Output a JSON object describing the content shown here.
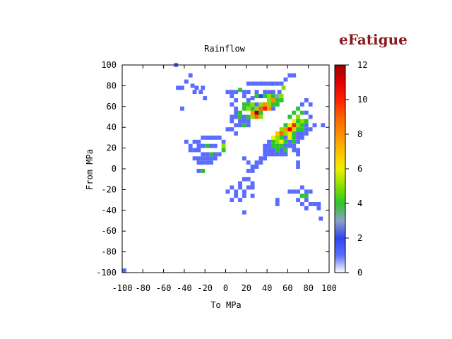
{
  "brand": {
    "logo_text": "eFatigue",
    "color": "#8b1a1a"
  },
  "chart_data": {
    "type": "heatmap",
    "title": "Rainflow",
    "xlabel": "To MPa",
    "ylabel": "From MPa",
    "xlim": [
      -100,
      100
    ],
    "ylim": [
      -100,
      100
    ],
    "bin_size": 4,
    "xticks": [
      -100,
      -80,
      -60,
      -40,
      -20,
      0,
      20,
      40,
      60,
      80,
      100
    ],
    "yticks": [
      -100,
      -80,
      -60,
      -40,
      -20,
      0,
      20,
      40,
      60,
      80,
      100
    ],
    "colorbar": {
      "min": 0,
      "max": 12,
      "ticks": [
        0,
        2,
        4,
        6,
        8,
        10,
        12
      ]
    },
    "colors": {
      "0": "#ffffff",
      "1": "#5a6cff",
      "2": "#2e46f0",
      "3": "#8fa0c8",
      "4": "#2cc42c",
      "5": "#88e000",
      "6": "#f0f000",
      "7": "#ffc000",
      "8": "#ff9000",
      "9": "#ff6000",
      "10": "#ff2000",
      "11": "#e00000",
      "12": "#a00000"
    },
    "cells": [
      [
        -100,
        -100,
        1
      ],
      [
        -50,
        98,
        1
      ],
      [
        -36,
        88,
        1
      ],
      [
        -40,
        82,
        1
      ],
      [
        -44,
        76,
        1
      ],
      [
        -34,
        78,
        1
      ],
      [
        -32,
        72,
        1
      ],
      [
        -30,
        76,
        1
      ],
      [
        -24,
        76,
        1
      ],
      [
        -48,
        76,
        1
      ],
      [
        -22,
        66,
        1
      ],
      [
        -26,
        72,
        1
      ],
      [
        -44,
        56,
        1
      ],
      [
        20,
        80,
        1
      ],
      [
        24,
        80,
        1
      ],
      [
        28,
        80,
        1
      ],
      [
        32,
        80,
        1
      ],
      [
        36,
        80,
        1
      ],
      [
        40,
        80,
        1
      ],
      [
        44,
        80,
        1
      ],
      [
        48,
        80,
        1
      ],
      [
        52,
        80,
        1
      ],
      [
        56,
        84,
        1
      ],
      [
        60,
        88,
        1
      ],
      [
        64,
        88,
        1
      ],
      [
        0,
        72,
        1
      ],
      [
        4,
        72,
        1
      ],
      [
        8,
        72,
        1
      ],
      [
        16,
        72,
        1
      ],
      [
        12,
        74,
        4
      ],
      [
        20,
        72,
        1
      ],
      [
        28,
        72,
        1
      ],
      [
        36,
        72,
        1
      ],
      [
        40,
        72,
        1
      ],
      [
        44,
        72,
        1
      ],
      [
        50,
        72,
        1
      ],
      [
        54,
        76,
        5
      ],
      [
        4,
        68,
        1
      ],
      [
        8,
        64,
        1
      ],
      [
        16,
        68,
        1
      ],
      [
        20,
        64,
        1
      ],
      [
        24,
        66,
        1
      ],
      [
        28,
        68,
        4
      ],
      [
        32,
        68,
        2
      ],
      [
        36,
        68,
        4
      ],
      [
        40,
        68,
        5
      ],
      [
        44,
        68,
        4
      ],
      [
        48,
        68,
        3
      ],
      [
        52,
        68,
        5
      ],
      [
        4,
        60,
        1
      ],
      [
        8,
        56,
        1
      ],
      [
        16,
        60,
        4
      ],
      [
        20,
        60,
        4
      ],
      [
        24,
        60,
        5
      ],
      [
        28,
        60,
        1
      ],
      [
        32,
        60,
        5
      ],
      [
        36,
        60,
        2
      ],
      [
        40,
        64,
        5
      ],
      [
        44,
        64,
        8
      ],
      [
        48,
        64,
        4
      ],
      [
        52,
        64,
        4
      ],
      [
        8,
        52,
        1
      ],
      [
        12,
        52,
        4
      ],
      [
        16,
        56,
        4
      ],
      [
        20,
        56,
        5
      ],
      [
        24,
        56,
        4
      ],
      [
        28,
        56,
        5
      ],
      [
        32,
        56,
        9
      ],
      [
        36,
        60,
        8
      ],
      [
        40,
        60,
        5
      ],
      [
        44,
        60,
        4
      ],
      [
        48,
        60,
        4
      ],
      [
        12,
        48,
        4
      ],
      [
        16,
        48,
        1
      ],
      [
        20,
        48,
        4
      ],
      [
        24,
        52,
        8
      ],
      [
        28,
        52,
        12
      ],
      [
        32,
        52,
        4
      ],
      [
        36,
        56,
        10
      ],
      [
        40,
        56,
        8
      ],
      [
        44,
        56,
        1
      ],
      [
        12,
        44,
        1
      ],
      [
        16,
        44,
        1
      ],
      [
        20,
        44,
        1
      ],
      [
        24,
        48,
        5
      ],
      [
        28,
        48,
        9
      ],
      [
        32,
        48,
        5
      ],
      [
        4,
        44,
        1
      ],
      [
        8,
        40,
        1
      ],
      [
        12,
        40,
        1
      ],
      [
        16,
        40,
        4
      ],
      [
        20,
        40,
        1
      ],
      [
        4,
        48,
        1
      ],
      [
        8,
        48,
        1
      ],
      [
        0,
        36,
        1
      ],
      [
        4,
        36,
        1
      ],
      [
        8,
        32,
        1
      ],
      [
        76,
        64,
        1
      ],
      [
        80,
        60,
        1
      ],
      [
        72,
        60,
        1
      ],
      [
        68,
        56,
        4
      ],
      [
        72,
        52,
        4
      ],
      [
        76,
        52,
        1
      ],
      [
        80,
        48,
        1
      ],
      [
        64,
        52,
        4
      ],
      [
        68,
        48,
        5
      ],
      [
        72,
        44,
        5
      ],
      [
        76,
        44,
        4
      ],
      [
        60,
        48,
        4
      ],
      [
        64,
        44,
        6
      ],
      [
        68,
        44,
        4
      ],
      [
        72,
        40,
        4
      ],
      [
        76,
        40,
        1
      ],
      [
        80,
        36,
        1
      ],
      [
        84,
        40,
        1
      ],
      [
        92,
        40,
        1
      ],
      [
        56,
        40,
        4
      ],
      [
        60,
        40,
        6
      ],
      [
        64,
        40,
        10
      ],
      [
        68,
        40,
        5
      ],
      [
        72,
        36,
        4
      ],
      [
        76,
        36,
        1
      ],
      [
        52,
        36,
        5
      ],
      [
        56,
        36,
        8
      ],
      [
        60,
        36,
        11
      ],
      [
        64,
        36,
        7
      ],
      [
        68,
        36,
        4
      ],
      [
        72,
        32,
        1
      ],
      [
        48,
        32,
        7
      ],
      [
        52,
        32,
        9
      ],
      [
        56,
        32,
        5
      ],
      [
        60,
        32,
        6
      ],
      [
        64,
        32,
        4
      ],
      [
        68,
        32,
        1
      ],
      [
        76,
        32,
        1
      ],
      [
        44,
        28,
        6
      ],
      [
        48,
        28,
        5
      ],
      [
        52,
        28,
        4
      ],
      [
        56,
        28,
        1
      ],
      [
        60,
        28,
        6
      ],
      [
        64,
        28,
        4
      ],
      [
        68,
        28,
        1
      ],
      [
        72,
        28,
        1
      ],
      [
        40,
        24,
        1
      ],
      [
        44,
        24,
        4
      ],
      [
        48,
        24,
        5
      ],
      [
        52,
        24,
        6
      ],
      [
        56,
        24,
        4
      ],
      [
        60,
        24,
        1
      ],
      [
        64,
        24,
        4
      ],
      [
        68,
        24,
        1
      ],
      [
        36,
        20,
        1
      ],
      [
        40,
        20,
        1
      ],
      [
        44,
        20,
        4
      ],
      [
        48,
        20,
        4
      ],
      [
        52,
        20,
        4
      ],
      [
        56,
        20,
        1
      ],
      [
        60,
        20,
        1
      ],
      [
        64,
        20,
        1
      ],
      [
        36,
        16,
        1
      ],
      [
        40,
        16,
        1
      ],
      [
        44,
        16,
        1
      ],
      [
        48,
        16,
        4
      ],
      [
        52,
        16,
        1
      ],
      [
        56,
        16,
        4
      ],
      [
        64,
        16,
        1
      ],
      [
        68,
        16,
        1
      ],
      [
        36,
        12,
        1
      ],
      [
        40,
        12,
        1
      ],
      [
        44,
        12,
        1
      ],
      [
        48,
        12,
        1
      ],
      [
        52,
        12,
        1
      ],
      [
        56,
        12,
        1
      ],
      [
        68,
        12,
        1
      ],
      [
        32,
        8,
        1
      ],
      [
        36,
        8,
        1
      ],
      [
        28,
        4,
        1
      ],
      [
        32,
        4,
        1
      ],
      [
        24,
        0,
        1
      ],
      [
        28,
        0,
        1
      ],
      [
        20,
        -4,
        1
      ],
      [
        24,
        -4,
        1
      ],
      [
        20,
        4,
        1
      ],
      [
        16,
        8,
        1
      ],
      [
        68,
        4,
        1
      ],
      [
        68,
        0,
        1
      ],
      [
        -40,
        24,
        1
      ],
      [
        -36,
        20,
        1
      ],
      [
        -32,
        24,
        1
      ],
      [
        -28,
        24,
        1
      ],
      [
        -24,
        28,
        1
      ],
      [
        -20,
        28,
        1
      ],
      [
        -16,
        28,
        1
      ],
      [
        -12,
        28,
        1
      ],
      [
        -8,
        28,
        1
      ],
      [
        -36,
        16,
        1
      ],
      [
        -32,
        16,
        1
      ],
      [
        -28,
        20,
        1
      ],
      [
        -24,
        20,
        1
      ],
      [
        -20,
        20,
        4
      ],
      [
        -16,
        20,
        1
      ],
      [
        -12,
        20,
        1
      ],
      [
        -4,
        24,
        1
      ],
      [
        -4,
        20,
        5
      ],
      [
        -4,
        16,
        4
      ],
      [
        -28,
        16,
        1
      ],
      [
        -24,
        12,
        1
      ],
      [
        -20,
        12,
        1
      ],
      [
        -16,
        12,
        4
      ],
      [
        -12,
        12,
        1
      ],
      [
        -8,
        12,
        1
      ],
      [
        -32,
        8,
        1
      ],
      [
        -28,
        8,
        1
      ],
      [
        -24,
        8,
        1
      ],
      [
        -20,
        8,
        1
      ],
      [
        -16,
        8,
        1
      ],
      [
        -12,
        8,
        1
      ],
      [
        -28,
        4,
        1
      ],
      [
        -24,
        4,
        1
      ],
      [
        -20,
        4,
        1
      ],
      [
        -16,
        4,
        1
      ],
      [
        -24,
        -4,
        4
      ],
      [
        -28,
        -4,
        1
      ],
      [
        0,
        -24,
        1
      ],
      [
        4,
        -20,
        1
      ],
      [
        8,
        -24,
        1
      ],
      [
        12,
        -20,
        1
      ],
      [
        16,
        -24,
        1
      ],
      [
        20,
        -20,
        1
      ],
      [
        24,
        -20,
        1
      ],
      [
        24,
        -16,
        1
      ],
      [
        20,
        -12,
        1
      ],
      [
        12,
        -16,
        1
      ],
      [
        16,
        -12,
        1
      ],
      [
        4,
        -32,
        1
      ],
      [
        8,
        -28,
        1
      ],
      [
        16,
        -28,
        1
      ],
      [
        12,
        -32,
        1
      ],
      [
        24,
        -28,
        1
      ],
      [
        16,
        -44,
        1
      ],
      [
        60,
        -24,
        1
      ],
      [
        64,
        -24,
        1
      ],
      [
        68,
        -24,
        1
      ],
      [
        72,
        -20,
        1
      ],
      [
        76,
        -24,
        1
      ],
      [
        80,
        -24,
        1
      ],
      [
        72,
        -28,
        4
      ],
      [
        76,
        -28,
        4
      ],
      [
        76,
        -32,
        1
      ],
      [
        68,
        -32,
        1
      ],
      [
        48,
        -32,
        1
      ],
      [
        48,
        -36,
        1
      ],
      [
        80,
        -36,
        1
      ],
      [
        84,
        -36,
        1
      ],
      [
        88,
        -36,
        1
      ],
      [
        88,
        -40,
        1
      ],
      [
        76,
        -40,
        1
      ],
      [
        72,
        -36,
        1
      ],
      [
        90,
        -50,
        1
      ]
    ]
  }
}
